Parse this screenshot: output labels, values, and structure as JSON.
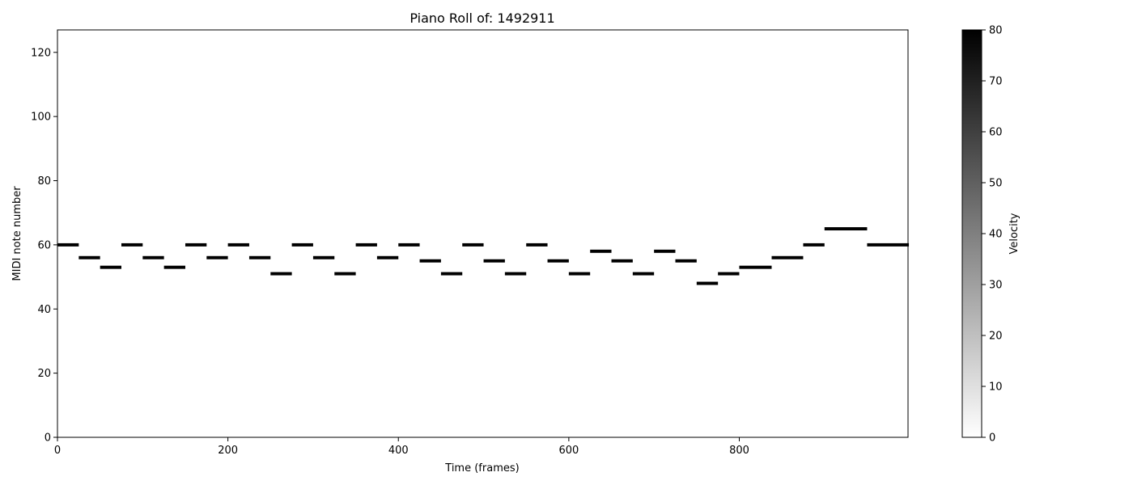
{
  "chart_data": {
    "type": "heatmap",
    "title": "Piano Roll of: 1492911",
    "xlabel": "Time (frames)",
    "ylabel": "MIDI note number",
    "xlim": [
      0,
      998
    ],
    "ylim": [
      0,
      127
    ],
    "xticks": [
      0,
      200,
      400,
      600,
      800
    ],
    "yticks": [
      0,
      20,
      40,
      60,
      80,
      100,
      120
    ],
    "grid": false,
    "colormap": {
      "low": "#ffffff",
      "high": "#000000"
    },
    "colorbar": {
      "label": "Velocity",
      "range": [
        0,
        80
      ],
      "ticks": [
        0,
        10,
        20,
        30,
        40,
        50,
        60,
        70,
        80
      ]
    },
    "notes": [
      {
        "start": 0,
        "end": 24,
        "pitch": 60,
        "velocity": 80
      },
      {
        "start": 25,
        "end": 49,
        "pitch": 56,
        "velocity": 80
      },
      {
        "start": 50,
        "end": 74,
        "pitch": 53,
        "velocity": 80
      },
      {
        "start": 75,
        "end": 99,
        "pitch": 60,
        "velocity": 80
      },
      {
        "start": 100,
        "end": 124,
        "pitch": 56,
        "velocity": 80
      },
      {
        "start": 125,
        "end": 149,
        "pitch": 53,
        "velocity": 80
      },
      {
        "start": 150,
        "end": 174,
        "pitch": 60,
        "velocity": 80
      },
      {
        "start": 175,
        "end": 199,
        "pitch": 56,
        "velocity": 80
      },
      {
        "start": 200,
        "end": 224,
        "pitch": 60,
        "velocity": 80
      },
      {
        "start": 225,
        "end": 249,
        "pitch": 56,
        "velocity": 80
      },
      {
        "start": 250,
        "end": 274,
        "pitch": 51,
        "velocity": 80
      },
      {
        "start": 275,
        "end": 299,
        "pitch": 60,
        "velocity": 80
      },
      {
        "start": 300,
        "end": 324,
        "pitch": 56,
        "velocity": 80
      },
      {
        "start": 325,
        "end": 349,
        "pitch": 51,
        "velocity": 80
      },
      {
        "start": 350,
        "end": 374,
        "pitch": 60,
        "velocity": 80
      },
      {
        "start": 375,
        "end": 399,
        "pitch": 56,
        "velocity": 80
      },
      {
        "start": 400,
        "end": 424,
        "pitch": 60,
        "velocity": 80
      },
      {
        "start": 425,
        "end": 449,
        "pitch": 55,
        "velocity": 80
      },
      {
        "start": 450,
        "end": 474,
        "pitch": 51,
        "velocity": 80
      },
      {
        "start": 475,
        "end": 499,
        "pitch": 60,
        "velocity": 80
      },
      {
        "start": 500,
        "end": 524,
        "pitch": 55,
        "velocity": 80
      },
      {
        "start": 525,
        "end": 549,
        "pitch": 51,
        "velocity": 80
      },
      {
        "start": 550,
        "end": 574,
        "pitch": 60,
        "velocity": 80
      },
      {
        "start": 575,
        "end": 599,
        "pitch": 55,
        "velocity": 80
      },
      {
        "start": 600,
        "end": 624,
        "pitch": 51,
        "velocity": 80
      },
      {
        "start": 625,
        "end": 649,
        "pitch": 58,
        "velocity": 80
      },
      {
        "start": 650,
        "end": 674,
        "pitch": 55,
        "velocity": 80
      },
      {
        "start": 675,
        "end": 699,
        "pitch": 51,
        "velocity": 80
      },
      {
        "start": 700,
        "end": 724,
        "pitch": 58,
        "velocity": 80
      },
      {
        "start": 725,
        "end": 749,
        "pitch": 55,
        "velocity": 80
      },
      {
        "start": 750,
        "end": 774,
        "pitch": 48,
        "velocity": 80
      },
      {
        "start": 775,
        "end": 799,
        "pitch": 51,
        "velocity": 80
      },
      {
        "start": 800,
        "end": 837,
        "pitch": 53,
        "velocity": 80
      },
      {
        "start": 838,
        "end": 874,
        "pitch": 56,
        "velocity": 80
      },
      {
        "start": 875,
        "end": 899,
        "pitch": 60,
        "velocity": 80
      },
      {
        "start": 900,
        "end": 949,
        "pitch": 65,
        "velocity": 80
      },
      {
        "start": 950,
        "end": 998,
        "pitch": 60,
        "velocity": 80
      }
    ]
  }
}
